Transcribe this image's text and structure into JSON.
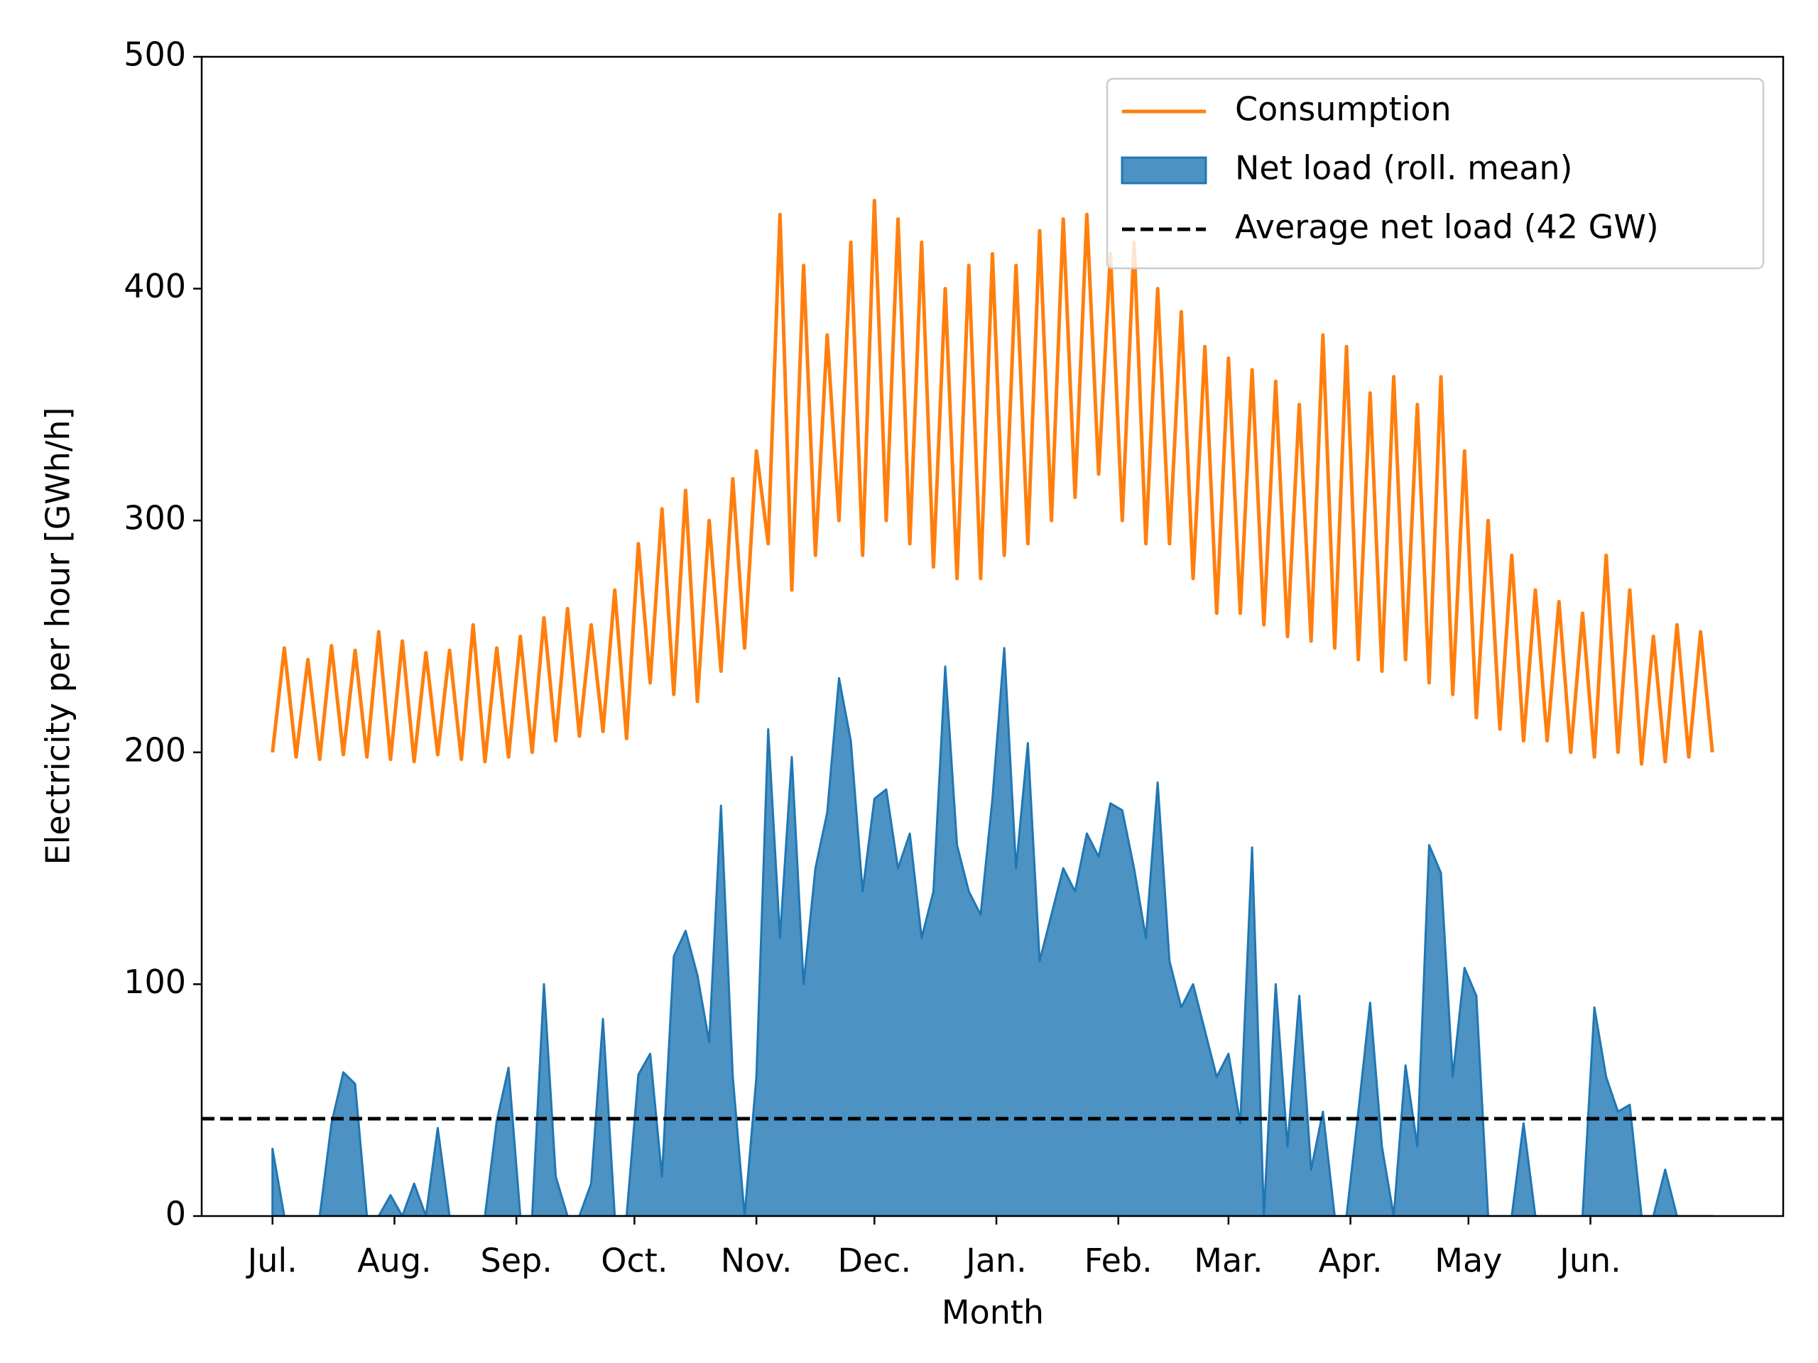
{
  "chart_data": {
    "type": "line",
    "x_label": "Month",
    "y_label": "Electricity per hour [GWh/h]",
    "x": [
      0,
      3,
      6,
      9,
      12,
      15,
      18,
      21,
      24,
      27,
      30,
      33,
      36,
      39,
      42,
      45,
      48,
      51,
      54,
      57,
      60,
      63,
      66,
      69,
      72,
      75,
      78,
      81,
      84,
      87,
      90,
      93,
      96,
      99,
      102,
      105,
      108,
      111,
      114,
      117,
      120,
      123,
      126,
      129,
      132,
      135,
      138,
      141,
      144,
      147,
      150,
      153,
      156,
      159,
      162,
      165,
      168,
      171,
      174,
      177,
      180,
      183,
      186,
      189,
      192,
      195,
      198,
      201,
      204,
      207,
      210,
      213,
      216,
      219,
      222,
      225,
      228,
      231,
      234,
      237,
      240,
      243,
      246,
      249,
      252,
      255,
      258,
      261,
      264,
      267,
      270,
      273,
      276,
      279,
      282,
      285,
      288,
      291,
      294,
      297,
      300,
      303,
      306,
      309,
      312,
      315,
      318,
      321,
      324,
      327,
      330,
      333,
      336,
      339,
      342,
      345,
      348,
      351,
      354,
      357,
      360,
      363,
      366
    ],
    "xlim": [
      -18,
      384
    ],
    "xticks": [
      {
        "value": 0,
        "label": "Jul."
      },
      {
        "value": 31,
        "label": "Aug."
      },
      {
        "value": 62,
        "label": "Sep."
      },
      {
        "value": 92,
        "label": "Oct."
      },
      {
        "value": 123,
        "label": "Nov."
      },
      {
        "value": 153,
        "label": "Dec."
      },
      {
        "value": 184,
        "label": "Jan."
      },
      {
        "value": 215,
        "label": "Feb."
      },
      {
        "value": 243,
        "label": "Mar."
      },
      {
        "value": 274,
        "label": "Apr."
      },
      {
        "value": 304,
        "label": "May"
      },
      {
        "value": 335,
        "label": "Jun."
      }
    ],
    "ylim": [
      0,
      500
    ],
    "yticks": [
      0,
      100,
      200,
      300,
      400,
      500
    ],
    "legend": "upper right",
    "series": [
      {
        "name": "Consumption",
        "color": "#ff7f0e",
        "type": "line",
        "values": [
          200,
          245,
          198,
          240,
          197,
          246,
          199,
          244,
          198,
          252,
          197,
          248,
          196,
          243,
          199,
          244,
          197,
          255,
          196,
          245,
          198,
          250,
          200,
          258,
          205,
          262,
          207,
          255,
          209,
          270,
          206,
          290,
          230,
          305,
          225,
          313,
          222,
          300,
          235,
          318,
          245,
          330,
          290,
          432,
          270,
          410,
          285,
          380,
          300,
          420,
          285,
          438,
          300,
          430,
          290,
          420,
          280,
          400,
          275,
          410,
          275,
          415,
          285,
          410,
          290,
          425,
          300,
          430,
          310,
          432,
          320,
          415,
          300,
          420,
          290,
          400,
          290,
          390,
          275,
          375,
          260,
          370,
          260,
          365,
          255,
          360,
          250,
          350,
          248,
          380,
          245,
          375,
          240,
          355,
          235,
          362,
          240,
          350,
          230,
          362,
          225,
          330,
          215,
          300,
          210,
          285,
          205,
          270,
          205,
          265,
          200,
          260,
          198,
          285,
          200,
          270,
          195,
          250,
          196,
          255,
          198,
          252,
          200
        ]
      },
      {
        "name": "Net load (roll. mean)",
        "color": "#1f77b4",
        "type": "area",
        "values": [
          29,
          0,
          0,
          0,
          0,
          40,
          62,
          57,
          0,
          0,
          9,
          0,
          14,
          0,
          38,
          0,
          0,
          0,
          0,
          41,
          64,
          0,
          0,
          100,
          17,
          0,
          0,
          14,
          85,
          0,
          0,
          61,
          70,
          17,
          112,
          123,
          104,
          75,
          177,
          60,
          0,
          60,
          210,
          120,
          198,
          100,
          150,
          174,
          232,
          205,
          140,
          180,
          184,
          150,
          165,
          120,
          140,
          237,
          160,
          140,
          130,
          180,
          245,
          150,
          204,
          110,
          130,
          150,
          140,
          165,
          155,
          178,
          175,
          150,
          120,
          187,
          110,
          90,
          100,
          80,
          60,
          70,
          40,
          159,
          0,
          100,
          30,
          95,
          20,
          45,
          0,
          0,
          45,
          92,
          30,
          0,
          65,
          30,
          160,
          148,
          60,
          107,
          95,
          0,
          0,
          0,
          40,
          0,
          0,
          0,
          0,
          0,
          90,
          60,
          45,
          48,
          0,
          0,
          20,
          0,
          0,
          0,
          0
        ]
      }
    ],
    "reference_line": {
      "name": "Average net load (42 GW)",
      "value": 42,
      "color": "#000000",
      "style": "dashed"
    }
  }
}
